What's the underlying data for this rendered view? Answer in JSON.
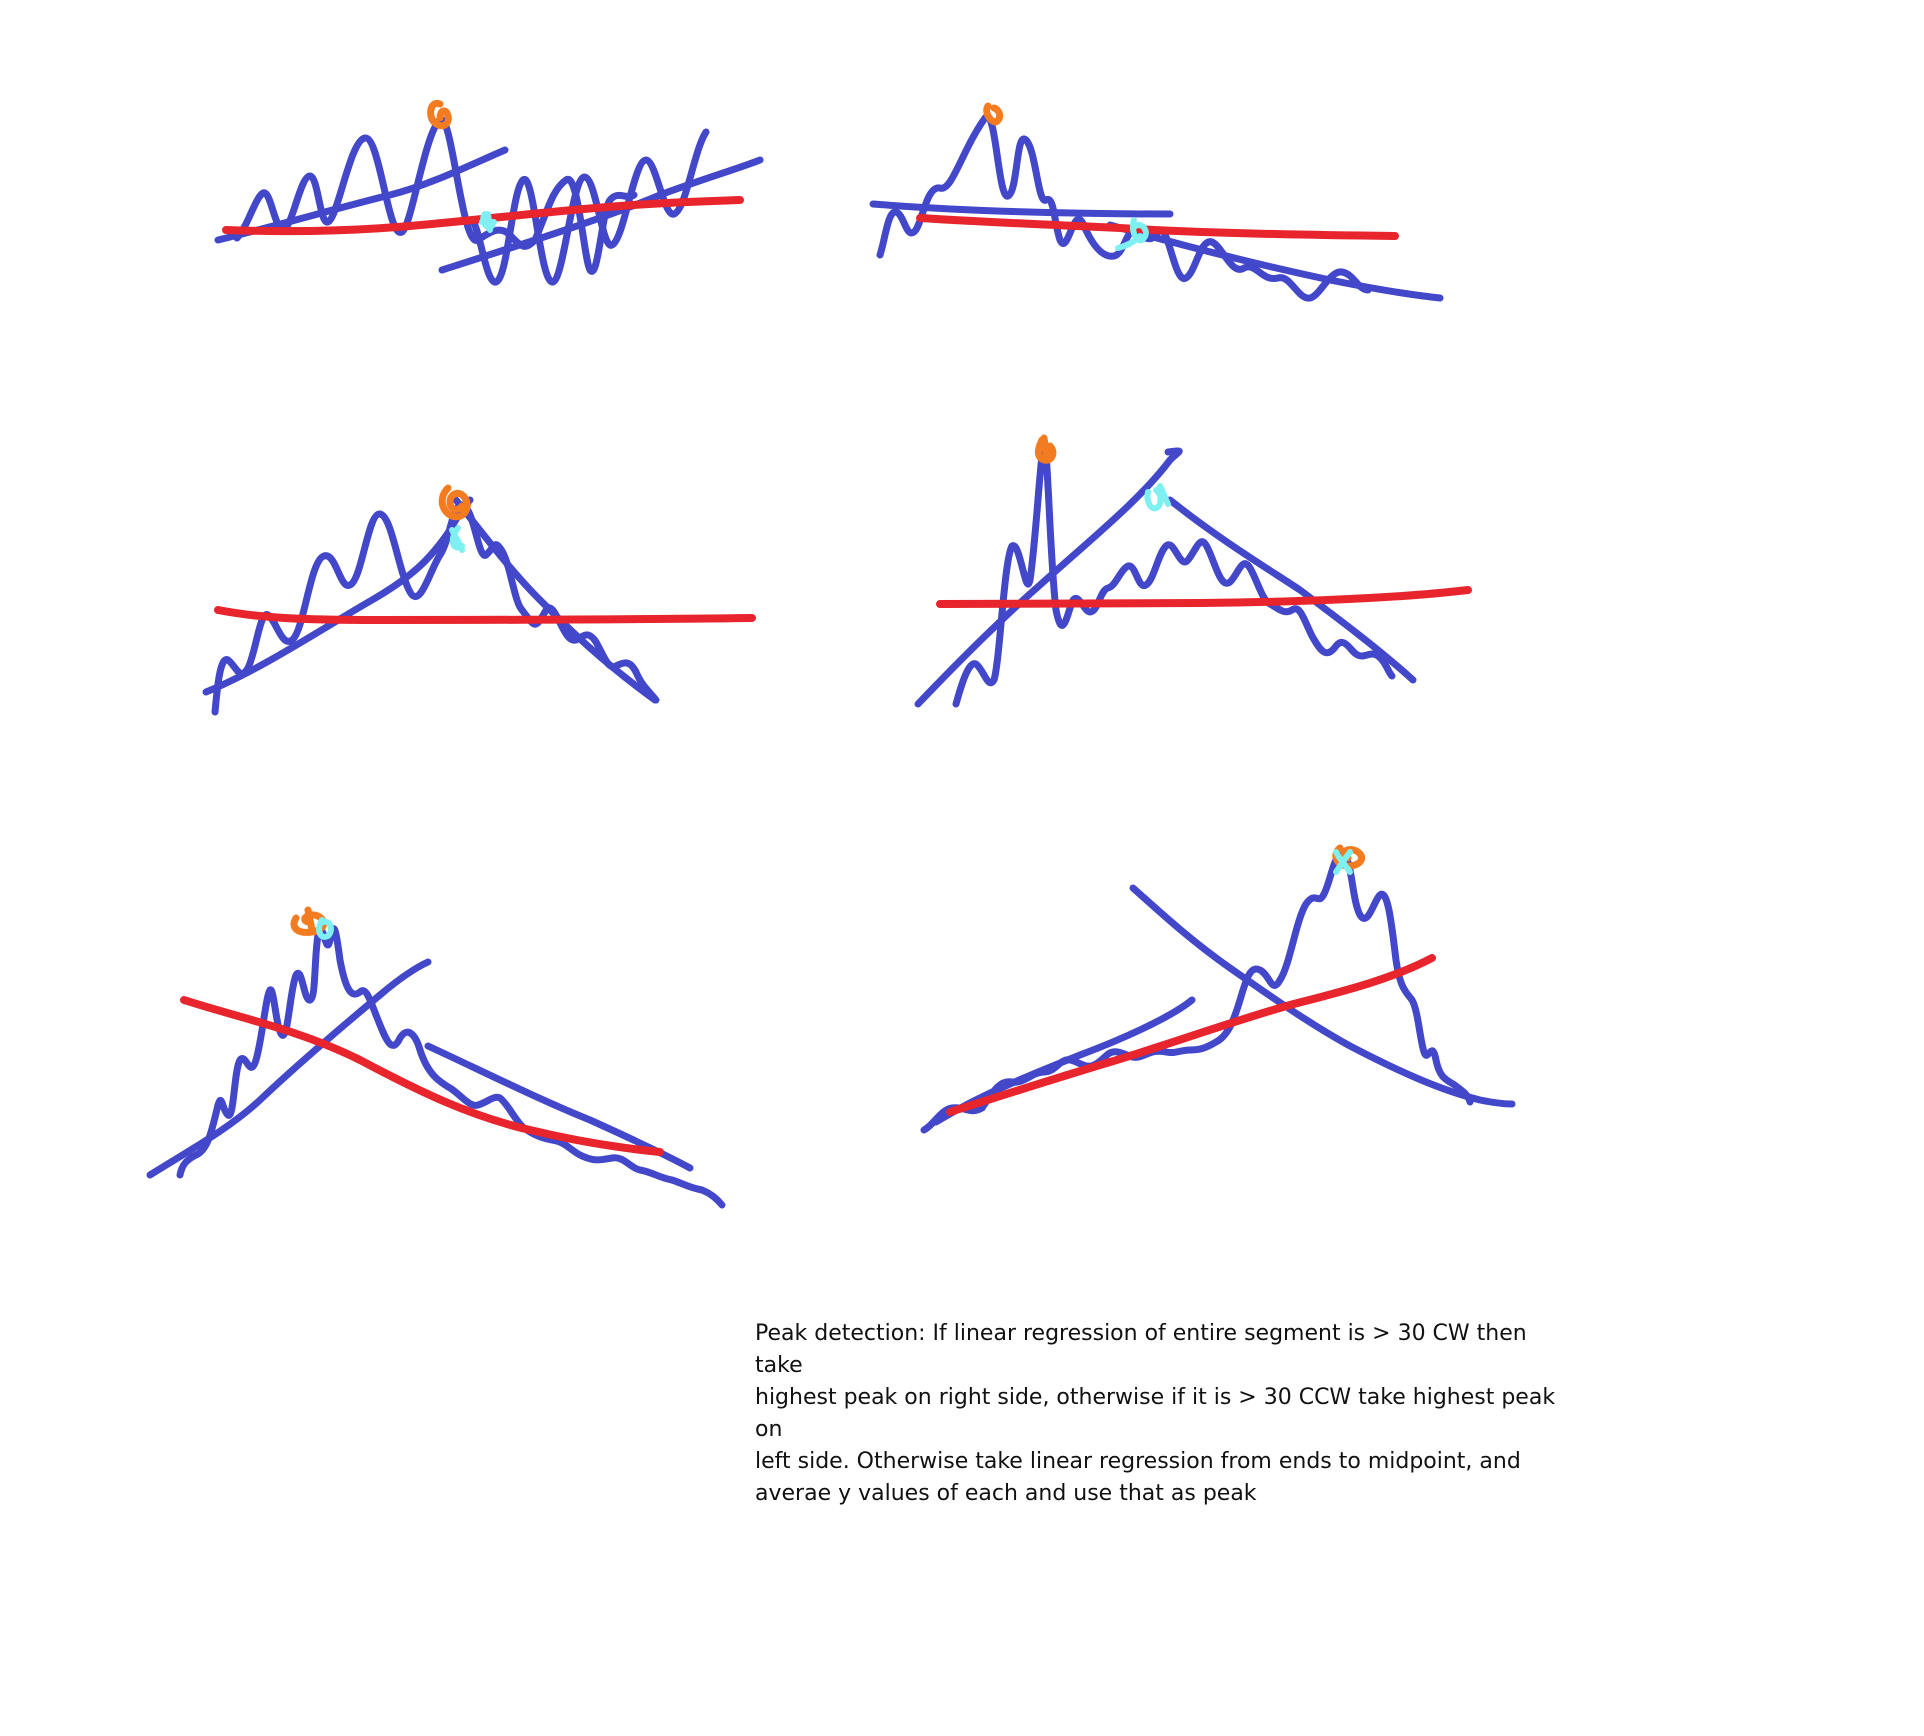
{
  "note": {
    "text": "Peak detection: If linear regression of entire segment is > 30 CW then take\nhighest peak on right side, otherwise if it is > 30 CCW take highest peak on\nleft side. Otherwise take linear regression from ends to midpoint, and\naverae y values of each and use that as peak"
  },
  "colors": {
    "signal": "#4347c9",
    "regression": "#e8242c",
    "peak_marker": "#f47c20",
    "detected_marker": "#7ff0f2"
  },
  "sketches": [
    {
      "id": "sketch-1",
      "description_icon": "peak-sketch-icon"
    },
    {
      "id": "sketch-2",
      "description_icon": "peak-sketch-icon"
    },
    {
      "id": "sketch-3",
      "description_icon": "peak-sketch-icon"
    },
    {
      "id": "sketch-4",
      "description_icon": "peak-sketch-icon"
    },
    {
      "id": "sketch-5",
      "description_icon": "peak-sketch-icon"
    },
    {
      "id": "sketch-6",
      "description_icon": "peak-sketch-icon"
    }
  ]
}
